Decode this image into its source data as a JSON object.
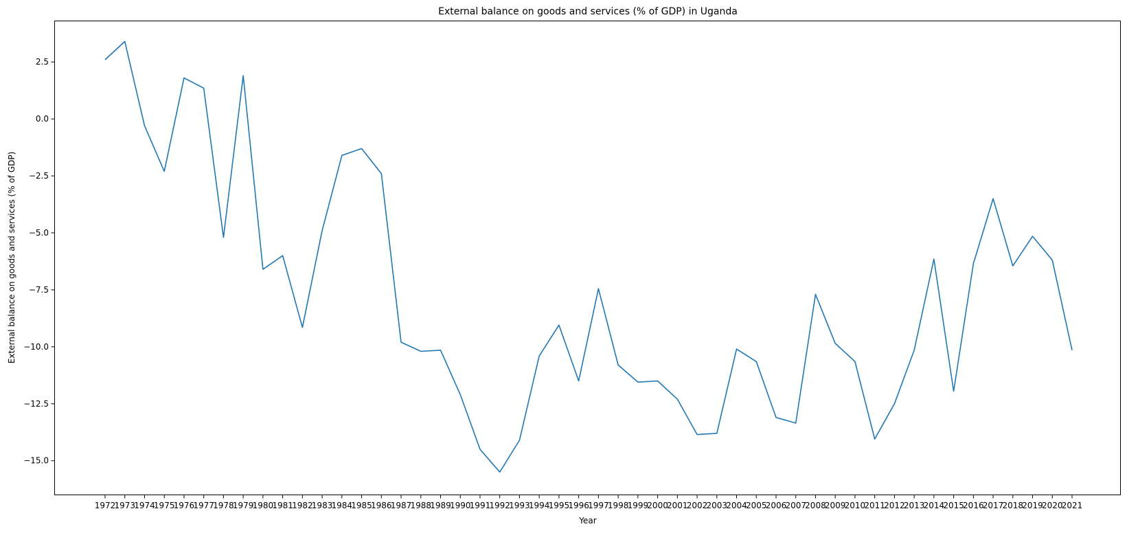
{
  "chart_data": {
    "type": "line",
    "title": "External balance on goods and services (% of GDP) in Uganda",
    "xlabel": "Year",
    "ylabel": "External balance on goods and services (% of GDP)",
    "ylim": [
      -16.5,
      4.3
    ],
    "yticks": [
      2.5,
      0.0,
      -2.5,
      -5.0,
      -7.5,
      -10.0,
      -12.5,
      -15.0
    ],
    "ytick_labels": [
      "2.5",
      "0.0",
      "−2.5",
      "−5.0",
      "−7.5",
      "−10.0",
      "−12.5",
      "−15.0"
    ],
    "grid": false,
    "line_color": "#1f77b4",
    "series": [
      {
        "x": [
          "1972",
          "1973",
          "1974",
          "1975",
          "1976",
          "1977",
          "1978",
          "1979",
          "1980",
          "1981",
          "1982",
          "1983",
          "1984",
          "1985",
          "1986",
          "1987",
          "1988",
          "1989",
          "1990",
          "1991",
          "1992",
          "1993",
          "1994",
          "1995",
          "1996",
          "1997",
          "1998",
          "1999",
          "2000",
          "2001",
          "2002",
          "2003",
          "2004",
          "2005",
          "2006",
          "2007",
          "2008",
          "2009",
          "2010",
          "2011",
          "2012",
          "2013",
          "2014",
          "2015",
          "2016",
          "2017",
          "2018",
          "2019",
          "2020",
          "2021"
        ],
        "values": [
          2.6,
          3.4,
          -0.3,
          -2.3,
          1.8,
          1.35,
          -5.2,
          1.9,
          -6.6,
          -6.0,
          -9.15,
          -4.9,
          -1.6,
          -1.3,
          -2.4,
          -9.8,
          -10.2,
          -10.15,
          -12.1,
          -14.5,
          -15.5,
          -14.1,
          -10.4,
          -9.05,
          -11.5,
          -7.45,
          -10.8,
          -11.55,
          -11.5,
          -12.3,
          -13.85,
          -13.8,
          -10.1,
          -10.65,
          -13.1,
          -13.35,
          -7.7,
          -9.85,
          -10.65,
          -14.05,
          -12.5,
          -10.15,
          -6.15,
          -11.95,
          -6.35,
          -3.5,
          -6.45,
          -5.15,
          -6.2,
          -10.15
        ]
      }
    ]
  }
}
